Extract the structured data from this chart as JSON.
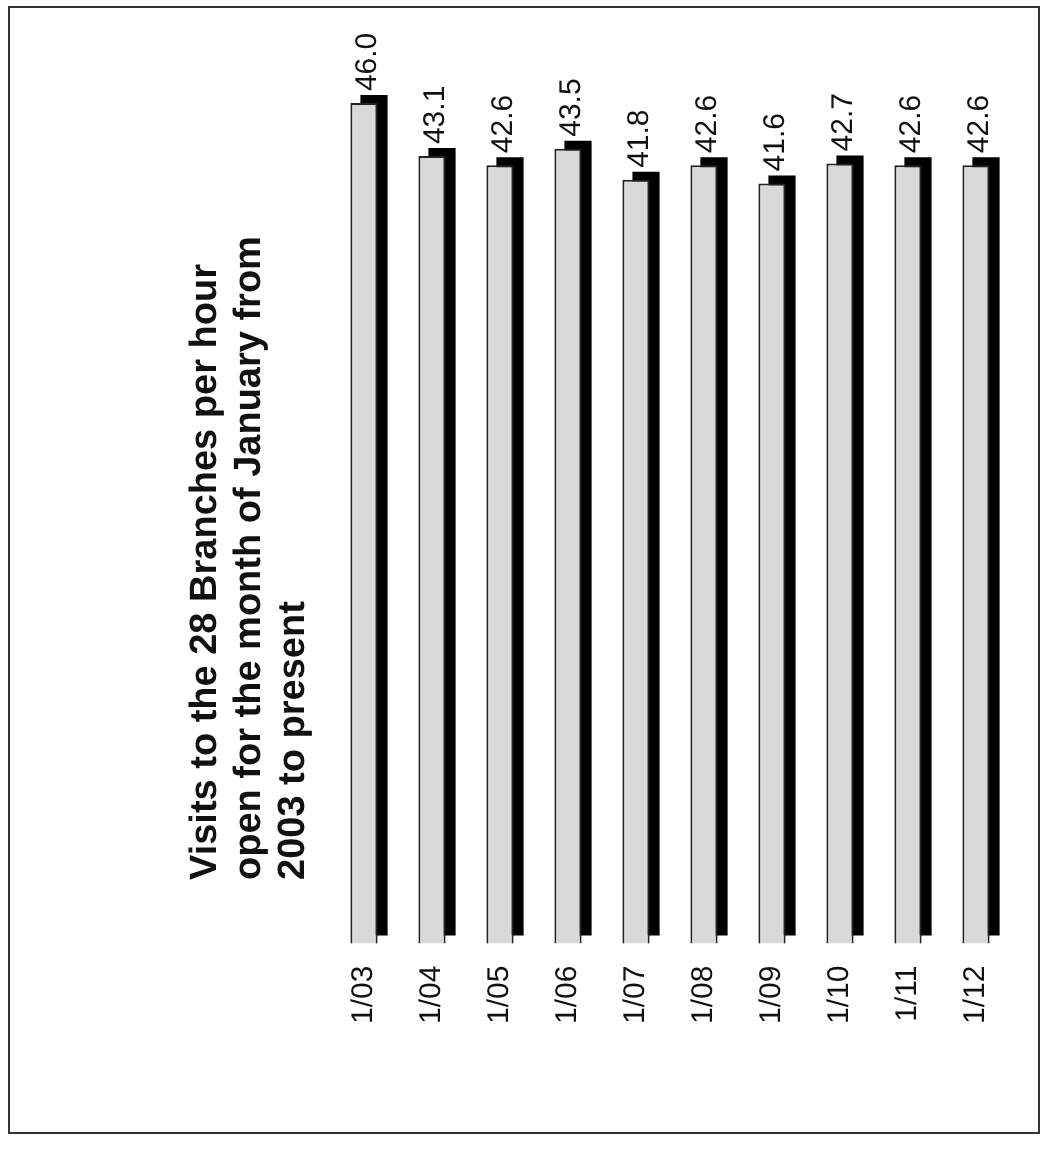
{
  "chart_data": {
    "type": "bar",
    "title": "Visits to the 28 Branches per hour open for the month of January from 2003 to present",
    "categories": [
      "1/03",
      "1/04",
      "1/05",
      "1/06",
      "1/07",
      "1/08",
      "1/09",
      "1/10",
      "1/11",
      "1/12"
    ],
    "values": [
      46.0,
      43.1,
      42.6,
      43.5,
      41.8,
      42.6,
      41.6,
      42.7,
      42.6,
      42.6
    ],
    "value_labels": [
      "46.0",
      "43.1",
      "42.6",
      "43.5",
      "41.8",
      "42.6",
      "41.6",
      "42.7",
      "42.6",
      "42.6"
    ],
    "color": "#d9d9d9",
    "legend": false
  }
}
